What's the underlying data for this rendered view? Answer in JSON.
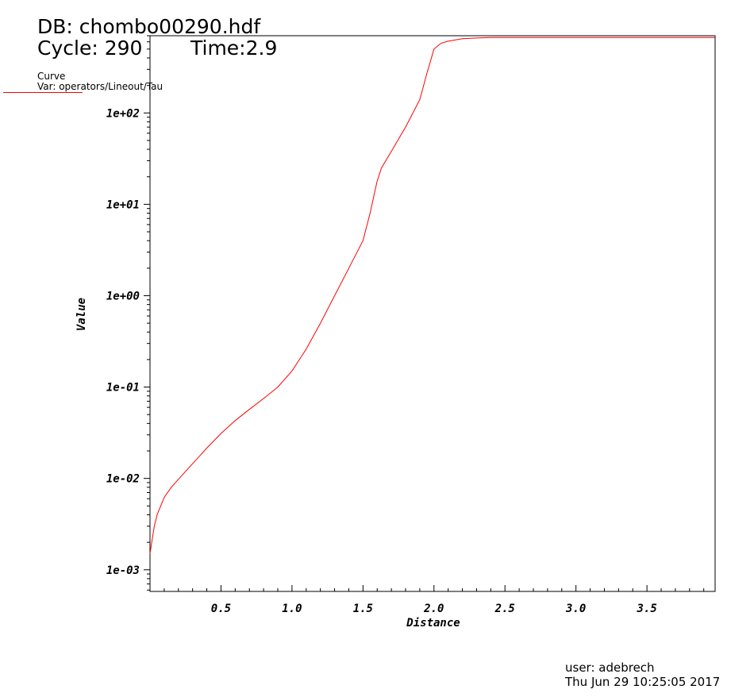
{
  "header": {
    "db": "DB: chombo00290.hdf",
    "cycle": "Cycle: 290",
    "time": "Time:2.9"
  },
  "legend": {
    "title": "Curve",
    "var": "Var: operators/Lineout/Tau",
    "color": "#ff0000"
  },
  "footer": {
    "user": "user: adebrech",
    "date": "Thu Jun 29 10:25:05 2017"
  },
  "chart_data": {
    "type": "line",
    "xlabel": "Distance",
    "ylabel": "Value",
    "xlim": [
      0.0,
      3.98
    ],
    "ylim": [
      0.00058,
      700
    ],
    "yscale": "log",
    "grid": false,
    "x_ticks": [
      0.5,
      1.0,
      1.5,
      2.0,
      2.5,
      3.0,
      3.5
    ],
    "x_tick_labels": [
      "0.5",
      "1.0",
      "1.5",
      "2.0",
      "2.5",
      "3.0",
      "3.5"
    ],
    "y_ticks": [
      0.001,
      0.01,
      0.1,
      1,
      10,
      100
    ],
    "y_tick_labels": [
      "1e-03",
      "1e-02",
      "1e-01",
      "1e+00",
      "1e+01",
      "1e+02"
    ],
    "series": [
      {
        "color": "#ff0000",
        "x": [
          0.0,
          0.01,
          0.03,
          0.05,
          0.1,
          0.15,
          0.2,
          0.3,
          0.4,
          0.5,
          0.6,
          0.7,
          0.8,
          0.9,
          1.0,
          1.1,
          1.2,
          1.3,
          1.4,
          1.5,
          1.55,
          1.6,
          1.63,
          1.7,
          1.8,
          1.9,
          1.95,
          2.0,
          2.05,
          2.1,
          2.2,
          2.3,
          2.4,
          2.6,
          3.0,
          3.5,
          3.98
        ],
        "y": [
          0.0015,
          0.0019,
          0.003,
          0.004,
          0.0062,
          0.008,
          0.0098,
          0.0145,
          0.0215,
          0.031,
          0.043,
          0.057,
          0.075,
          0.1,
          0.15,
          0.26,
          0.5,
          1.0,
          2.0,
          4.0,
          8.0,
          18,
          25,
          38,
          70,
          140,
          270,
          500,
          580,
          610,
          650,
          660,
          670,
          670,
          670,
          670,
          670
        ]
      }
    ]
  }
}
